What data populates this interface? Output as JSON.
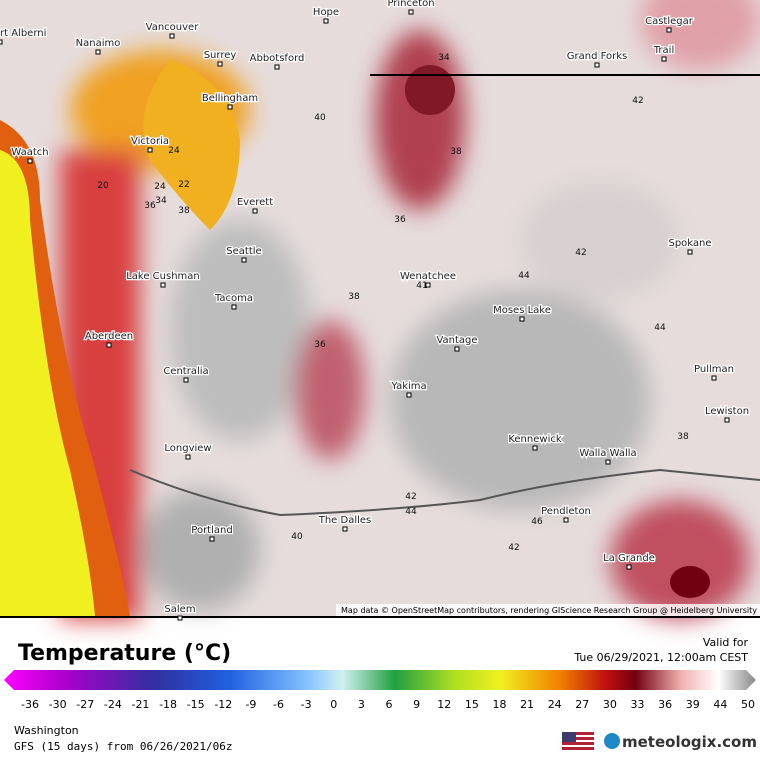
{
  "map": {
    "cities": [
      "rt Alberni",
      "Vancouver",
      "Hope",
      "Princeton",
      "Castlegar",
      "Nanaimo",
      "Surrey",
      "Abbotsford",
      "Grand Forks",
      "Trail",
      "Bellingham",
      "Victoria",
      "Waatch",
      "Everett",
      "Seattle",
      "Spokane",
      "Lake Cushman",
      "Wenatchee",
      "Tacoma",
      "Moses Lake",
      "Aberdeen",
      "Vantage",
      "Centralia",
      "Pullman",
      "Yakima",
      "Lewiston",
      "Kennewick",
      "Walla Walla",
      "Longview",
      "Pendleton",
      "The Dalles",
      "Portland",
      "La Grande",
      "Salem"
    ],
    "contour_labels": [
      34,
      42,
      40,
      38,
      24,
      36,
      20,
      24,
      22,
      34,
      36,
      38,
      42,
      44,
      41,
      38,
      44,
      36,
      38,
      42,
      44,
      46,
      40,
      42
    ],
    "attribution": "Map data © OpenStreetMap contributors, rendering GIScience Research Group @ Heidelberg University"
  },
  "legend": {
    "title": "Temperature (°C)",
    "ticks": [
      -36,
      -30,
      -27,
      -24,
      -21,
      -18,
      -15,
      -12,
      -9,
      -6,
      -3,
      0,
      3,
      6,
      9,
      12,
      15,
      18,
      21,
      24,
      27,
      30,
      33,
      36,
      39,
      44,
      50
    ]
  },
  "valid": {
    "label": "Valid for",
    "time": "Tue 06/29/2021, 12:00am CEST"
  },
  "footer": {
    "region": "Washington",
    "model": "GFS (15 days) from 06/26/2021/06z",
    "brand": "meteologix.com"
  }
}
